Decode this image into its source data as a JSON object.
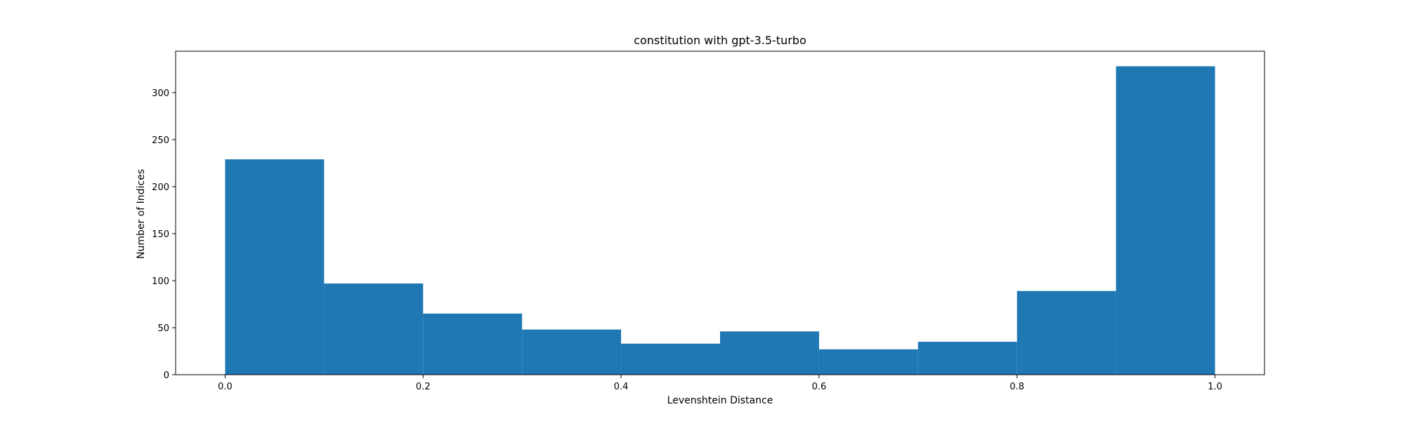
{
  "chart_data": {
    "type": "bar",
    "title": "constitution with gpt-3.5-turbo",
    "xlabel": "Levenshtein Distance",
    "ylabel": "Number of Indices",
    "bin_edges": [
      0.0,
      0.1,
      0.2,
      0.3,
      0.4,
      0.5,
      0.6,
      0.7,
      0.8,
      0.9,
      1.0
    ],
    "values": [
      229,
      97,
      65,
      48,
      33,
      46,
      27,
      35,
      89,
      328
    ],
    "xlim": [
      -0.05,
      1.05
    ],
    "ylim": [
      0,
      344
    ],
    "x_ticks": [
      0.0,
      0.2,
      0.4,
      0.6,
      0.8,
      1.0
    ],
    "x_tick_labels": [
      "0.0",
      "0.2",
      "0.4",
      "0.6",
      "0.8",
      "1.0"
    ],
    "y_ticks": [
      0,
      50,
      100,
      150,
      200,
      250,
      300
    ],
    "y_tick_labels": [
      "0",
      "50",
      "100",
      "150",
      "200",
      "250",
      "300"
    ],
    "grid": false,
    "bar_color": "#1f77b4"
  }
}
